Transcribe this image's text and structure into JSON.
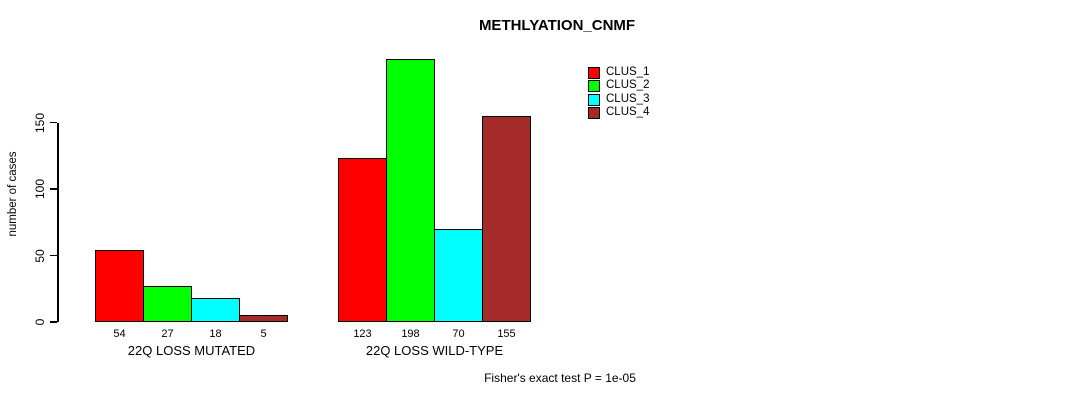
{
  "chart_data": {
    "type": "bar",
    "title": "METHLYATION_CNMF",
    "ylabel": "number of cases",
    "xlabel": "",
    "yticks": [
      0,
      50,
      100,
      150
    ],
    "ylim": [
      0,
      150
    ],
    "grid": false,
    "legend_position": "top-right",
    "categories": [
      "22Q LOSS MUTATED",
      "22Q LOSS WILD-TYPE"
    ],
    "series": [
      {
        "name": "CLUS_1",
        "color": "#FF0000",
        "values": [
          54,
          123
        ]
      },
      {
        "name": "CLUS_2",
        "color": "#00FF00",
        "values": [
          27,
          198
        ]
      },
      {
        "name": "CLUS_3",
        "color": "#00FFFF",
        "values": [
          18,
          70
        ]
      },
      {
        "name": "CLUS_4",
        "color": "#A52A2A",
        "values": [
          5,
          155
        ]
      }
    ],
    "bar_value_labels": {
      "22Q LOSS MUTATED": [
        54,
        27,
        18,
        5
      ],
      "22Q LOSS WILD-TYPE": [
        123,
        198,
        70,
        155
      ]
    },
    "annotation": "Fisher's exact test P = 1e-05"
  }
}
